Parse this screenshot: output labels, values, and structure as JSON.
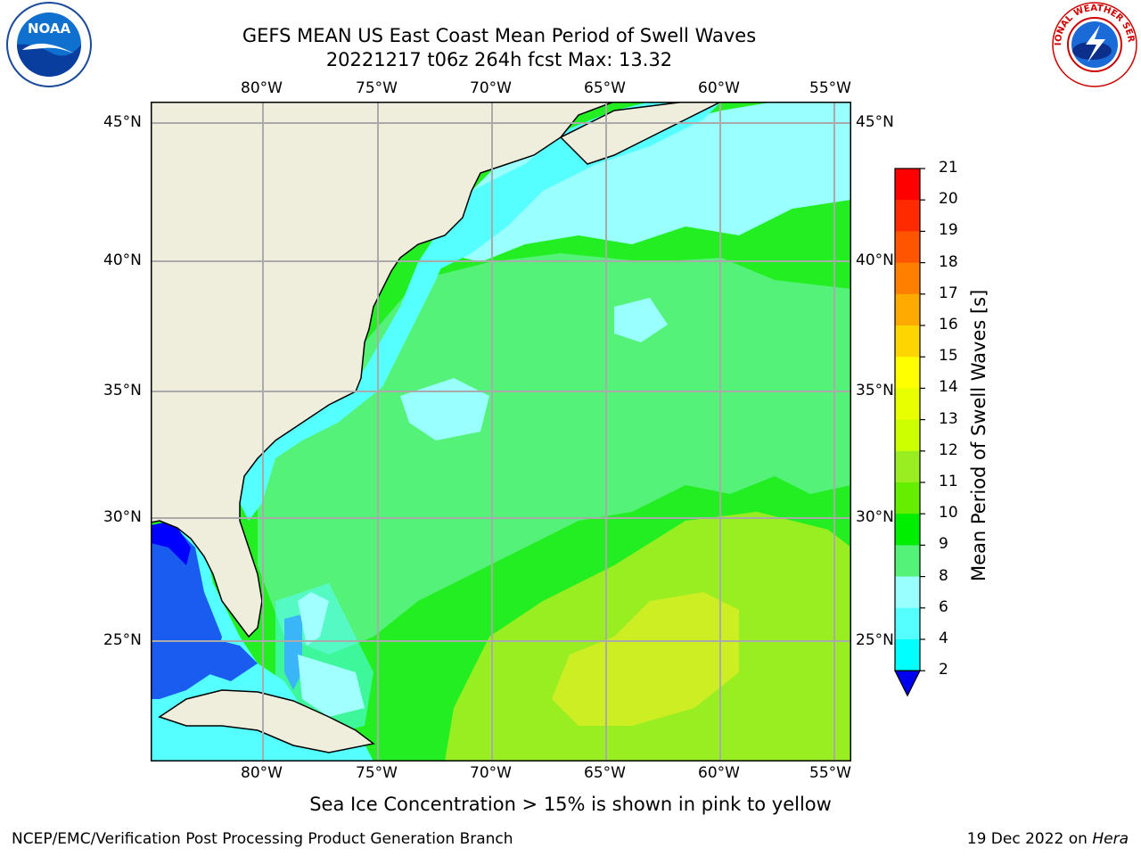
{
  "header": {
    "title_line1": "GEFS MEAN US East Coast Mean Period of Swell Waves",
    "title_line2": "20221217 t06z 264h fcst   Max: 13.32"
  },
  "logos": {
    "noaa": {
      "text": "NOAA"
    },
    "nws": {
      "text": "NATIONAL WEATHER SERVICE"
    }
  },
  "map": {
    "lon_ticks": [
      "80°W",
      "75°W",
      "70°W",
      "65°W",
      "60°W",
      "55°W"
    ],
    "lat_ticks": [
      "45°N",
      "40°N",
      "35°N",
      "30°N",
      "25°N"
    ],
    "colors": {
      "land": "#efeedd",
      "ocean_green": "#22ee22",
      "ocean_lightgreen": "#55f27a",
      "ocean_yellowgreen": "#99ee22",
      "ocean_yellow": "#ccee22",
      "ocean_cyan": "#55ffff",
      "ocean_paleblue": "#99ffff",
      "ocean_blue": "#1a5cf0",
      "ocean_darkblue": "#0000ff",
      "grid": "#aaaaaa"
    }
  },
  "colorbar": {
    "title": "Mean Period of Swell Waves [s]",
    "labels": [
      "21",
      "20",
      "19",
      "18",
      "17",
      "16",
      "15",
      "14",
      "13",
      "12",
      "11",
      "10",
      "9",
      "8",
      "6",
      "4",
      "2"
    ],
    "colors": [
      "#ff0000",
      "#ff2a00",
      "#ff5500",
      "#ff8000",
      "#ffaa00",
      "#ffd500",
      "#ffff00",
      "#e8ff00",
      "#ccff00",
      "#99ee22",
      "#66ee00",
      "#00ee00",
      "#55f27a",
      "#99ffff",
      "#55ffff",
      "#00ffff",
      "#00c0ff",
      "#0070ff",
      "#0000ee"
    ]
  },
  "caption": "Sea Ice Concentration > 15% is shown in pink to yellow",
  "footer": {
    "left": "NCEP/EMC/Verification Post Processing Product Generation Branch",
    "right_date": "19 Dec 2022 on",
    "right_host": "Hera"
  }
}
